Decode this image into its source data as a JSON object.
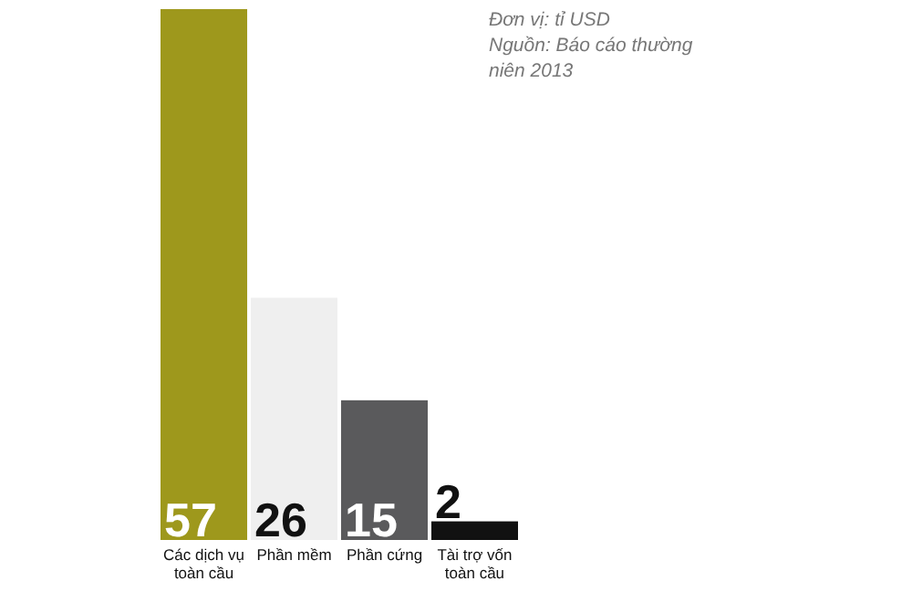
{
  "chart_data": {
    "type": "bar",
    "categories": [
      "Các dịch vụ toàn cầu",
      "Phần mềm",
      "Phần cứng",
      "Tài trợ vốn toàn cầu"
    ],
    "values": [
      57,
      26,
      15,
      2
    ],
    "colors": [
      "#9e981c",
      "#efefef",
      "#5a5a5c",
      "#111111"
    ],
    "data_labels": true,
    "annotations": [
      "Đơn vị: tỉ USD",
      "Nguồn: Báo cáo thường niên 2013"
    ]
  }
}
